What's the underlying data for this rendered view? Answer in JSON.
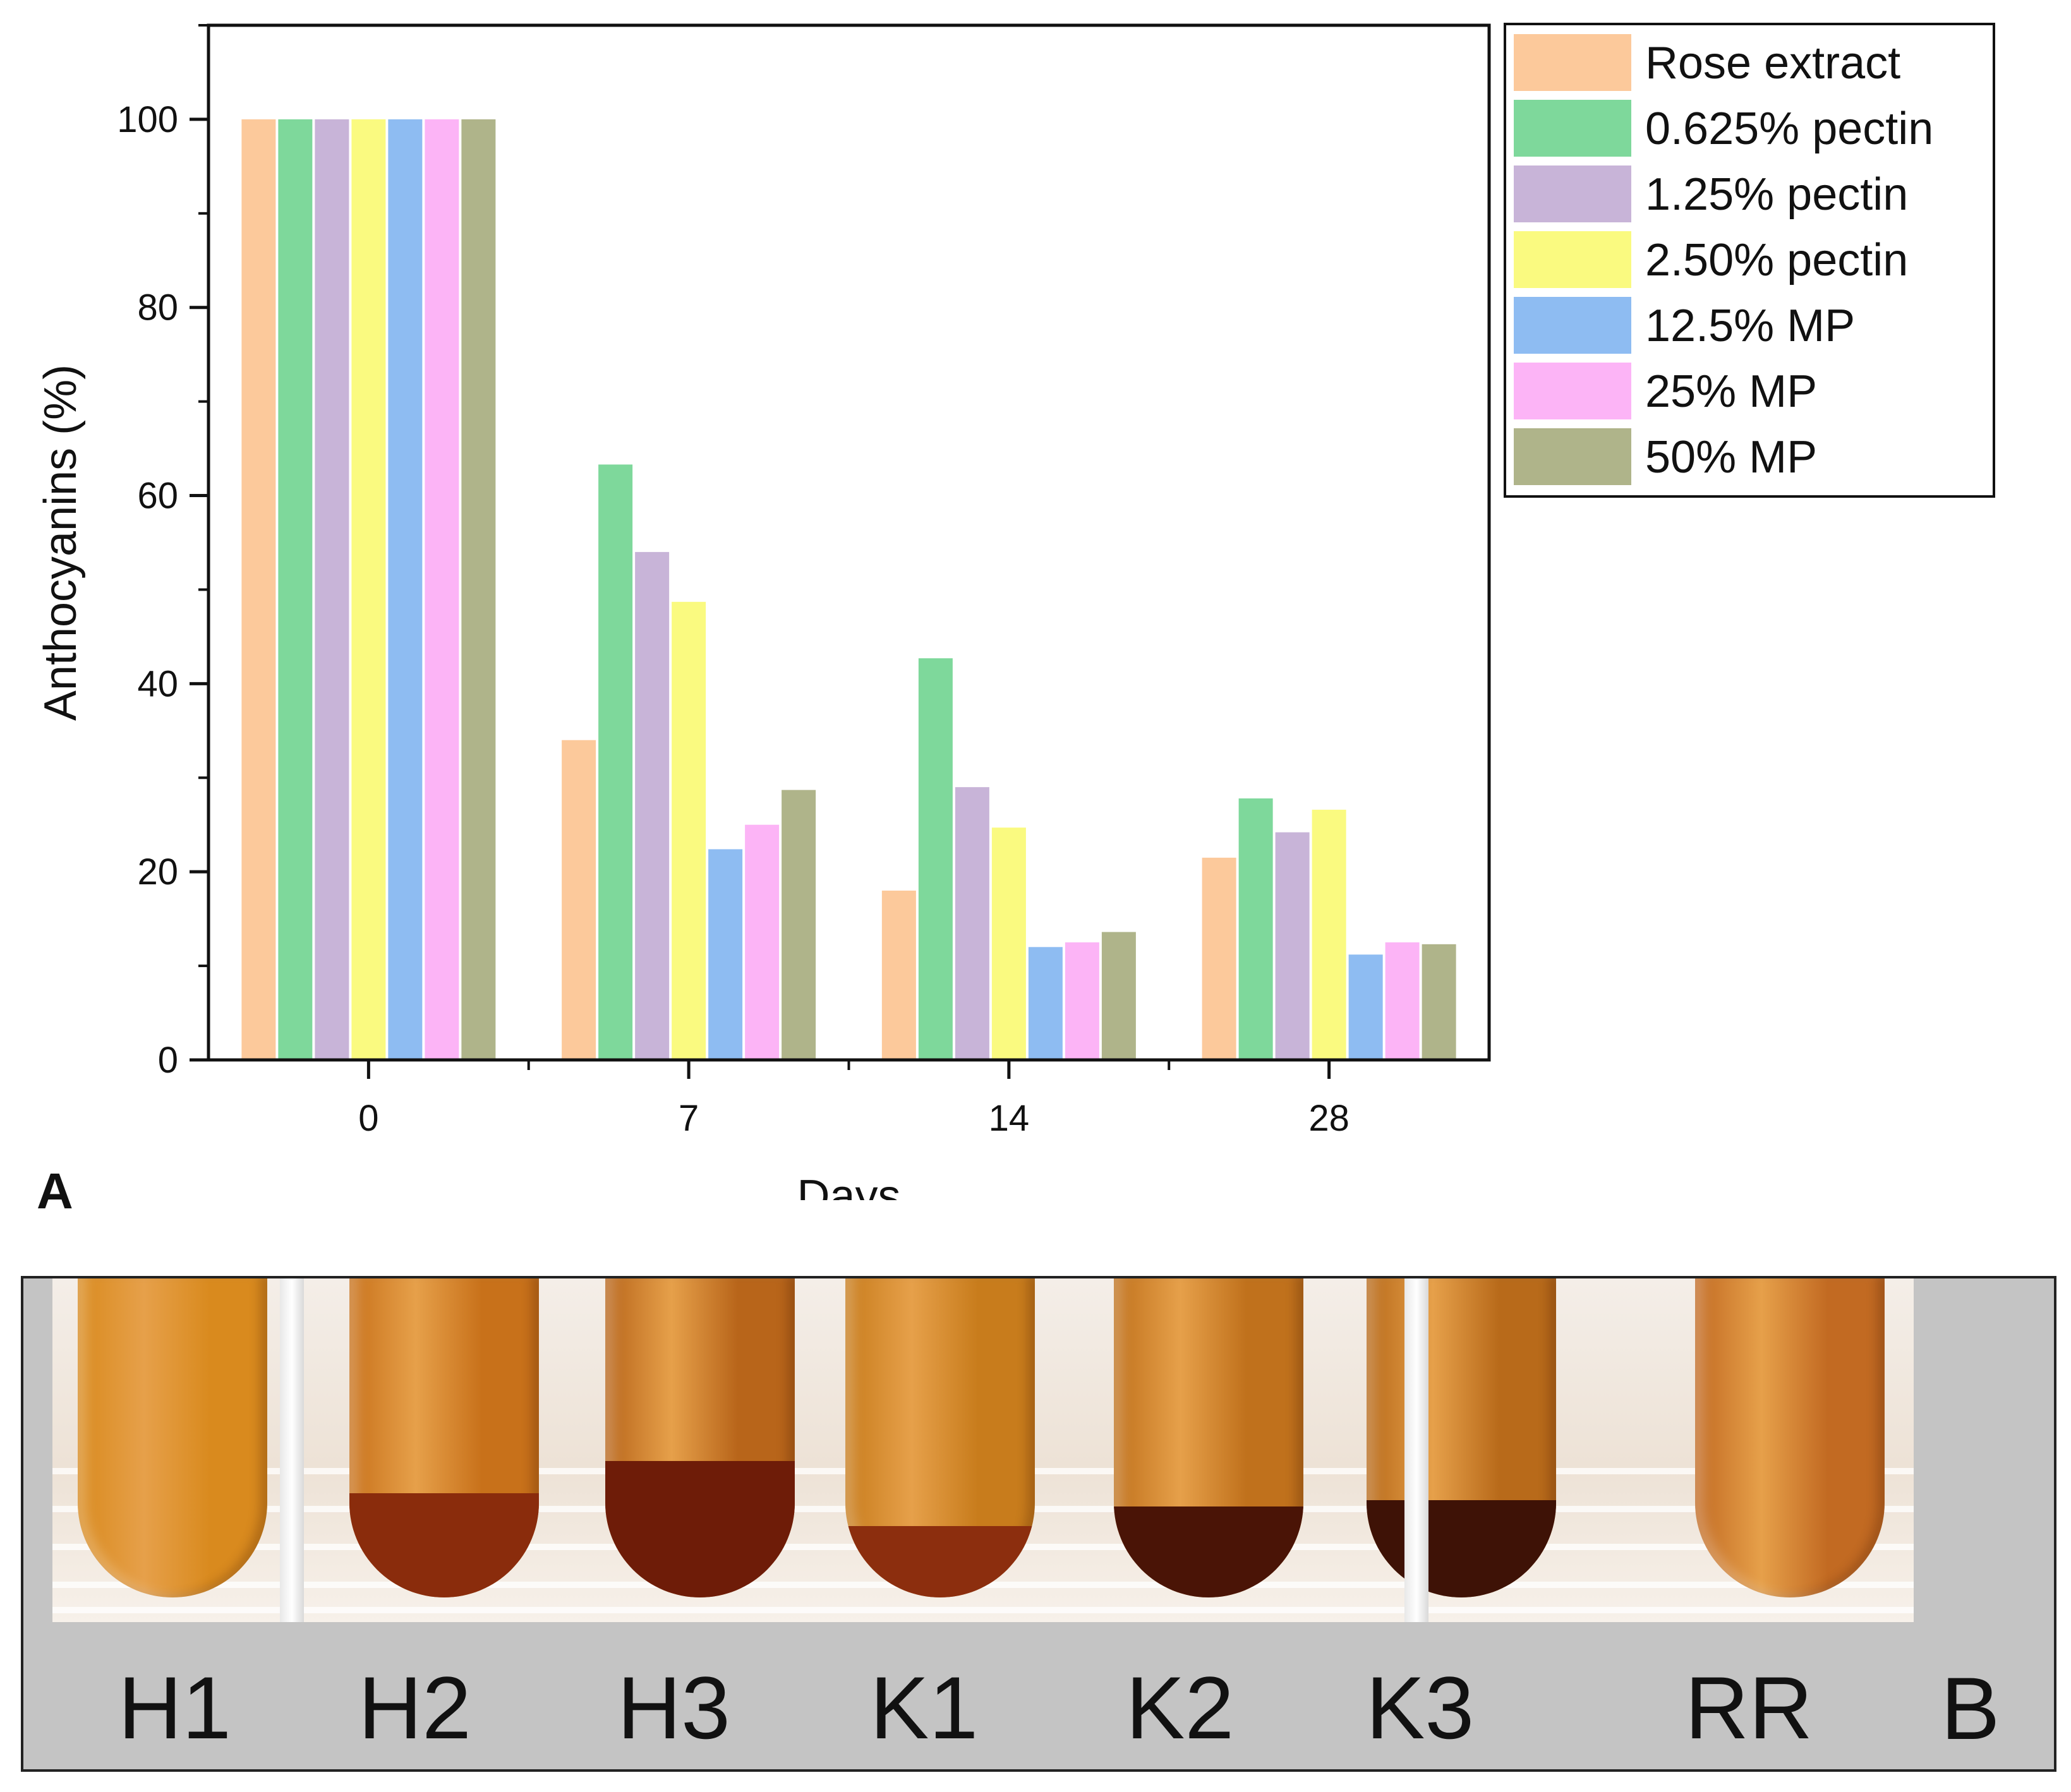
{
  "chart_data": {
    "type": "bar",
    "categories": [
      "0",
      "7",
      "14",
      "28"
    ],
    "xlabel": "Days",
    "ylabel": "Anthocyanins (%)",
    "ylim": [
      0,
      110
    ],
    "yticks": [
      0,
      20,
      40,
      60,
      80,
      100
    ],
    "legend_position": "top-right",
    "series": [
      {
        "name": "Rose extract",
        "color": "#fcc99b",
        "values": [
          100,
          34,
          18,
          21.5
        ]
      },
      {
        "name": "0.625% pectin",
        "color": "#7ed89b",
        "values": [
          100,
          63.3,
          42.7,
          27.8
        ]
      },
      {
        "name": "1.25% pectin",
        "color": "#c8b4d8",
        "values": [
          100,
          54,
          29,
          24.2
        ]
      },
      {
        "name": "2.50% pectin",
        "color": "#fafa80",
        "values": [
          100,
          48.7,
          24.7,
          26.6
        ]
      },
      {
        "name": "12.5% MP",
        "color": "#8ebcf2",
        "values": [
          100,
          22.4,
          12,
          11.2
        ]
      },
      {
        "name": "25% MP",
        "color": "#fcb4f6",
        "values": [
          100,
          25,
          12.5,
          12.5
        ]
      },
      {
        "name": "50% MP",
        "color": "#afb48a",
        "values": [
          100,
          28.7,
          13.6,
          12.3
        ]
      }
    ]
  },
  "panel_a_label": "A",
  "panel_b": {
    "label": "B",
    "tubes": [
      {
        "label": "H1",
        "liquid": "#d98a1e",
        "sediment": "#d98a1e",
        "sediment_pct": 0
      },
      {
        "label": "H2",
        "liquid": "#c8711a",
        "sediment": "#8a2c0c",
        "sediment_pct": 32
      },
      {
        "label": "H3",
        "liquid": "#b8651a",
        "sediment": "#6e1c08",
        "sediment_pct": 42
      },
      {
        "label": "K1",
        "liquid": "#c87c1c",
        "sediment": "#8c2e0e",
        "sediment_pct": 22
      },
      {
        "label": "K2",
        "liquid": "#c0711c",
        "sediment": "#4a1406",
        "sediment_pct": 28
      },
      {
        "label": "K3",
        "liquid": "#b86a1a",
        "sediment": "#3e1206",
        "sediment_pct": 30
      },
      {
        "label": "RR",
        "liquid": "#c26a22",
        "sediment": "#b05a1c",
        "sediment_pct": 0
      }
    ]
  }
}
